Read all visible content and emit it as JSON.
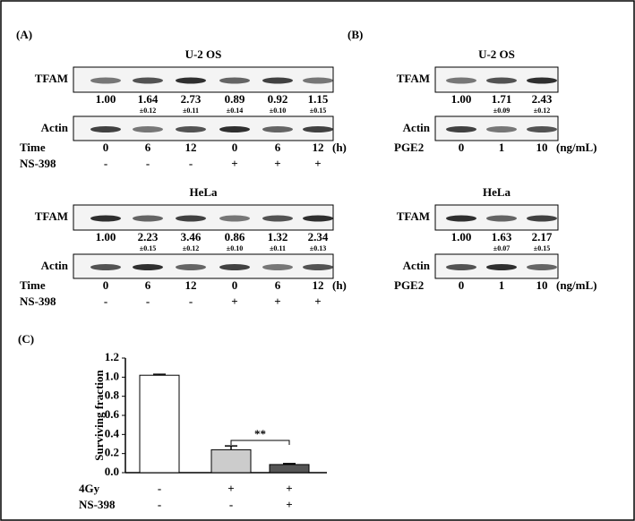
{
  "panel_a": {
    "label": "(A)",
    "blots": [
      {
        "title": "U-2 OS",
        "target": "TFAM",
        "ratios": [
          "1.00",
          "1.64",
          "2.73",
          "0.89",
          "0.92",
          "1.15"
        ],
        "errors": [
          "±0.12",
          "±0.11",
          "±0.14",
          "±0.10",
          "±0.15"
        ],
        "control": "Actin",
        "rows": [
          {
            "name": "Time",
            "values": [
              "0",
              "6",
              "12",
              "0",
              "6",
              "12"
            ],
            "unit": "(h)"
          },
          {
            "name": "NS-398",
            "values": [
              "-",
              "-",
              "-",
              "+",
              "+",
              "+"
            ]
          }
        ]
      },
      {
        "title": "HeLa",
        "target": "TFAM",
        "ratios": [
          "1.00",
          "2.23",
          "3.46",
          "0.86",
          "1.32",
          "2.34"
        ],
        "errors": [
          "±0.15",
          "±0.12",
          "±0.10",
          "±0.11",
          "±0.13"
        ],
        "control": "Actin",
        "rows": [
          {
            "name": "Time",
            "values": [
              "0",
              "6",
              "12",
              "0",
              "6",
              "12"
            ],
            "unit": "(h)"
          },
          {
            "name": "NS-398",
            "values": [
              "-",
              "-",
              "-",
              "+",
              "+",
              "+"
            ]
          }
        ]
      }
    ]
  },
  "panel_b": {
    "label": "(B)",
    "blots": [
      {
        "title": "U-2 OS",
        "target": "TFAM",
        "ratios": [
          "1.00",
          "1.71",
          "2.43"
        ],
        "errors": [
          "±0.09",
          "±0.12"
        ],
        "control": "Actin",
        "rows": [
          {
            "name": "PGE2",
            "values": [
              "0",
              "1",
              "10"
            ],
            "unit": "(ng/mL)"
          }
        ]
      },
      {
        "title": "HeLa",
        "target": "TFAM",
        "ratios": [
          "1.00",
          "1.63",
          "2.17"
        ],
        "errors": [
          "±0.07",
          "±0.15"
        ],
        "control": "Actin",
        "rows": [
          {
            "name": "PGE2",
            "values": [
              "0",
              "1",
              "10"
            ],
            "unit": "(ng/mL)"
          }
        ]
      }
    ]
  },
  "panel_c": {
    "label": "(C)",
    "chart_data": {
      "type": "bar",
      "y_label": "Surviving fraction",
      "values": [
        1.02,
        0.24,
        0.085
      ],
      "errors": [
        0.01,
        0.04,
        0.01
      ],
      "colors": [
        "#ffffff",
        "#cccccc",
        "#555555"
      ],
      "ylim": [
        0,
        1.2
      ],
      "yticks": [
        {
          "value": 0,
          "label": "0.0"
        },
        0.2,
        0.4,
        0.6,
        0.8,
        {
          "value": 1,
          "label": "1.0"
        },
        1.2
      ],
      "annotation": "**",
      "treatments": [
        {
          "name": "4Gy",
          "values": [
            "-",
            "+",
            "+"
          ]
        },
        {
          "name": "NS-398",
          "values": [
            "-",
            "-",
            "+"
          ]
        }
      ]
    }
  }
}
